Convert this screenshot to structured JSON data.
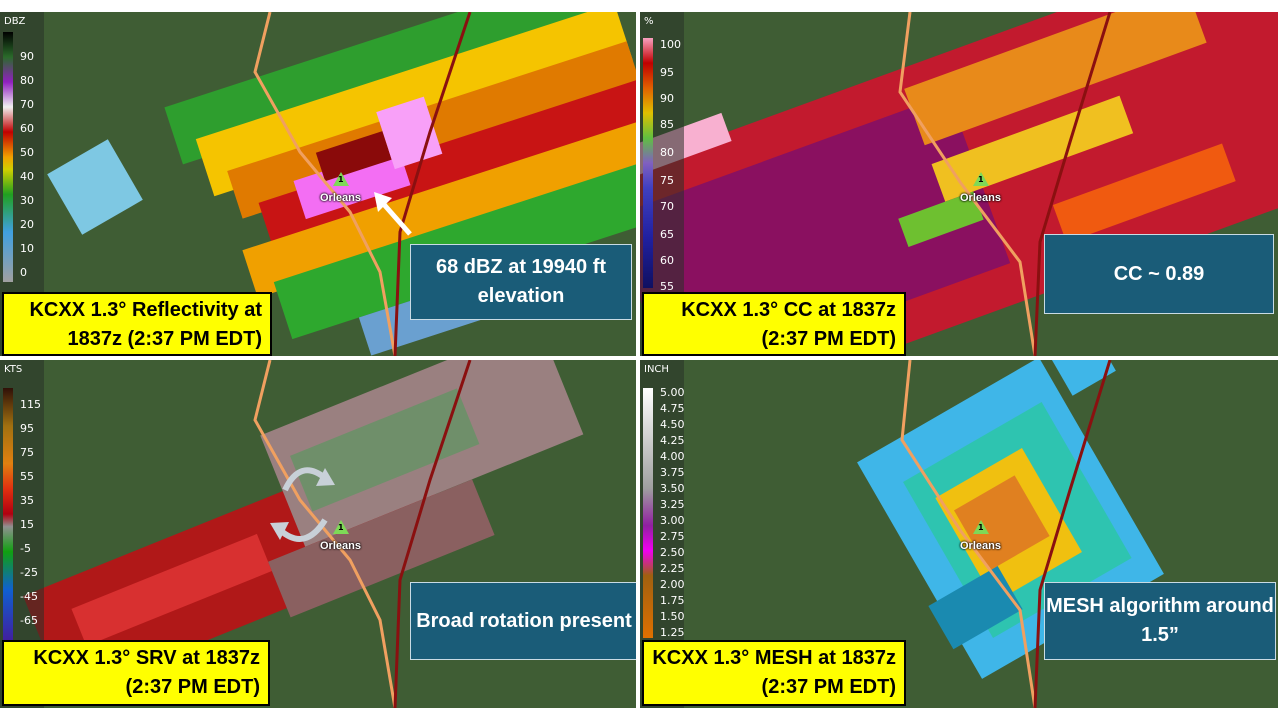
{
  "panels": {
    "reflectivity": {
      "title": "KCXX 1.3° Reflectivity at 1837z (2:37 PM EDT)",
      "unit": "DBZ",
      "ticks": [
        "90",
        "80",
        "70",
        "60",
        "50",
        "40",
        "30",
        "20",
        "10",
        "0"
      ],
      "note": "68 dBZ at 19940 ft elevation",
      "town": "Orleans"
    },
    "cc": {
      "title": "KCXX 1.3° CC at 1837z (2:37 PM EDT)",
      "unit": "%",
      "ticks": [
        "100",
        "95",
        "90",
        "85",
        "80",
        "75",
        "70",
        "65",
        "60",
        "55"
      ],
      "note": "CC ~ 0.89",
      "town": "Orleans"
    },
    "srv": {
      "title": "KCXX 1.3° SRV at 1837z (2:37 PM EDT)",
      "unit": "KTS",
      "ticks": [
        "115",
        "95",
        "75",
        "55",
        "35",
        "15",
        "-5",
        "-25",
        "-45",
        "-65"
      ],
      "note": "Broad rotation present",
      "town": "Orleans"
    },
    "mesh": {
      "title": "KCXX 1.3° MESH at 1837z (2:37 PM EDT)",
      "unit": "INCH",
      "ticks": [
        "5.00",
        "4.75",
        "4.50",
        "4.25",
        "4.00",
        "3.75",
        "3.50",
        "3.25",
        "3.00",
        "2.75",
        "2.50",
        "2.25",
        "2.00",
        "1.75",
        "1.50",
        "1.25"
      ],
      "note": "MESH algorithm around 1.5”",
      "town": "Orleans"
    }
  },
  "colors": {
    "title_bg": "#ffff00",
    "note_bg": "#1a5c78",
    "map_green": "#3e5a33"
  }
}
